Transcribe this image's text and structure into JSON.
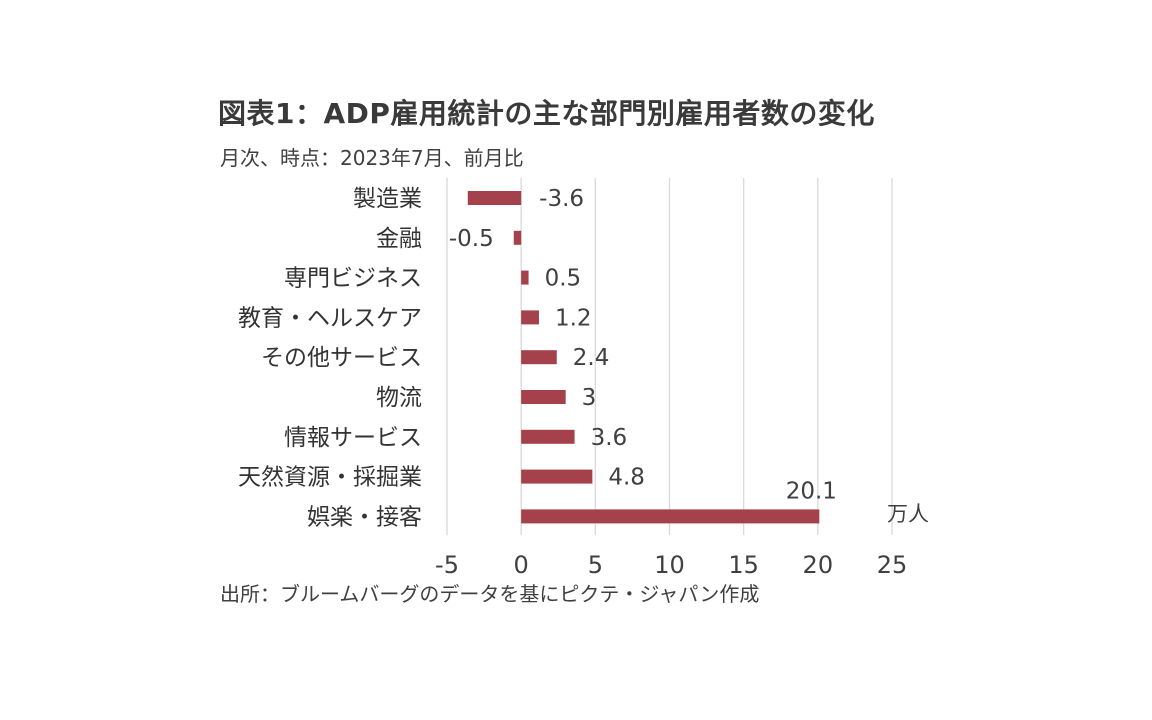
{
  "header": {
    "title": "図表1：ADP雇用統計の主な部門別雇用者数の変化",
    "subtitle": "月次、時点：2023年7月、前月比"
  },
  "footer": {
    "source": "出所：ブルームバーグのデータを基にピクテ・ジャパン作成"
  },
  "chart_data": {
    "type": "bar",
    "orientation": "horizontal",
    "categories": [
      "製造業",
      "金融",
      "専門ビジネス",
      "教育・ヘルスケア",
      "その他サービス",
      "物流",
      "情報サービス",
      "天然資源・採掘業",
      "娯楽・接客"
    ],
    "values": [
      -3.6,
      -0.5,
      0.5,
      1.2,
      2.4,
      3,
      3.6,
      4.8,
      20.1
    ],
    "data_labels": [
      "-3.6",
      "-0.5",
      "0.5",
      "1.2",
      "2.4",
      "3",
      "3.6",
      "4.8",
      "20.1"
    ],
    "unit_label": "万人",
    "xlim": [
      -5,
      25
    ],
    "xticks": [
      -5,
      0,
      5,
      10,
      15,
      20,
      25
    ],
    "xtick_labels": [
      "-5",
      "0",
      "5",
      "10",
      "15",
      "20",
      "25"
    ],
    "grid": "vertical",
    "bar_color": "#a5414a",
    "grid_color": "#d9d9d9"
  }
}
